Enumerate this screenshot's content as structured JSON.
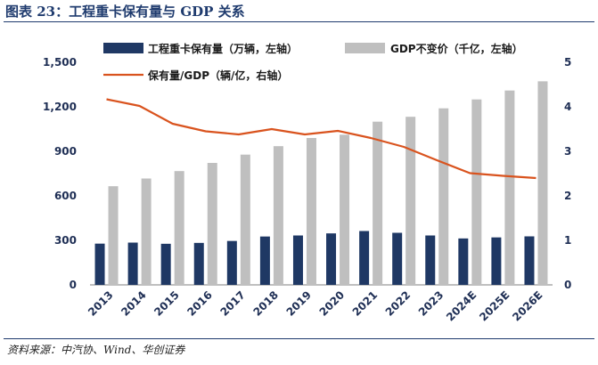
{
  "header": {
    "title": "图表 23：工程重卡保有量与 GDP 关系"
  },
  "footer": {
    "source": "资料来源：中汽协、Wind、华创证券"
  },
  "colors": {
    "navy": "#1f3864",
    "gray": "#bfbfbf",
    "orange": "#d9531e",
    "title": "#1f3b6e"
  },
  "chart_data": {
    "type": "bar",
    "categories": [
      "2013",
      "2014",
      "2015",
      "2016",
      "2017",
      "2018",
      "2019",
      "2020",
      "2021",
      "2022",
      "2023",
      "2024E",
      "2025E",
      "2026E"
    ],
    "series": [
      {
        "name": "工程重卡保有量（万辆，左轴）",
        "type": "bar",
        "axis": "left",
        "values": [
          278,
          285,
          277,
          283,
          296,
          326,
          333,
          347,
          363,
          351,
          333,
          313,
          320,
          327
        ]
      },
      {
        "name": "GDP不变价（千亿，左轴）",
        "type": "bar",
        "axis": "left",
        "values": [
          665,
          717,
          767,
          822,
          878,
          935,
          990,
          1012,
          1100,
          1133,
          1190,
          1250,
          1310,
          1372
        ]
      },
      {
        "name": "保有量/GDP（辆/亿，右轴）",
        "type": "line",
        "axis": "right",
        "values": [
          4.17,
          4.02,
          3.62,
          3.45,
          3.38,
          3.5,
          3.38,
          3.46,
          3.3,
          3.1,
          2.8,
          2.51,
          2.45,
          2.4
        ]
      }
    ],
    "y_left": {
      "min": 0,
      "max": 1500,
      "ticks": [
        "0",
        "300",
        "600",
        "900",
        "1,200",
        "1,500"
      ]
    },
    "y_right": {
      "min": 0,
      "max": 5,
      "ticks": [
        "0",
        "1",
        "2",
        "3",
        "4",
        "5"
      ]
    },
    "legend": "top",
    "grid": false
  }
}
